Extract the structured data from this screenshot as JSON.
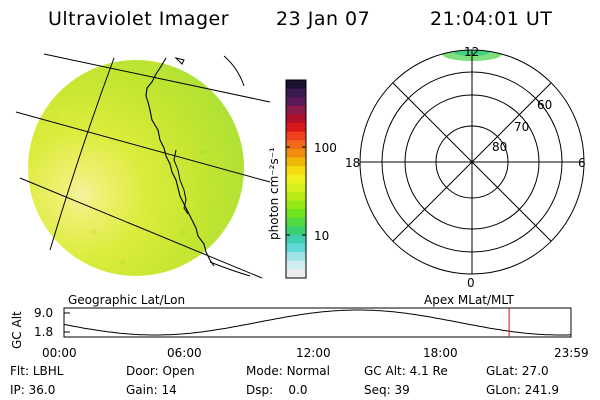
{
  "header": {
    "title": "Ultraviolet Imager",
    "date": "23 Jan 07",
    "time": "21:04:01 UT"
  },
  "colorbar": {
    "unit_label": "photon cm⁻²s⁻¹",
    "tick_labels": [
      "100",
      "10"
    ],
    "colors_top_to_bottom": [
      "#1c1030",
      "#3a1850",
      "#5a1a58",
      "#8a1a48",
      "#b0102a",
      "#d81818",
      "#f04020",
      "#f06818",
      "#f08c10",
      "#f0b808",
      "#f4dc10",
      "#f0f020",
      "#d8f020",
      "#b8ec18",
      "#94e818",
      "#70e420",
      "#50dc40",
      "#38d070",
      "#40d0b0",
      "#60d8d8",
      "#a0e4e8",
      "#d0eef0",
      "#ececec"
    ]
  },
  "geo_panel": {
    "label": "Geographic Lat/Lon"
  },
  "polar_panel": {
    "label": "Apex MLat/MLT",
    "mlt_labels": {
      "top": "12",
      "left": "18",
      "right": "6",
      "bottom": "0"
    },
    "lat_labels": [
      "60",
      "70",
      "80"
    ]
  },
  "timeline": {
    "ylabel": "GC Alt",
    "y_ticks": [
      "9.0",
      "1.8"
    ],
    "x_ticks": [
      "00:00",
      "06:00",
      "12:00",
      "18:00",
      "23:59"
    ],
    "current_time_fraction": 0.8779,
    "curve_color": "#000000",
    "marker_color": "#d01010"
  },
  "info": {
    "rows": [
      [
        {
          "label": "Flt:",
          "value": "LBHL"
        },
        {
          "label": "Door:",
          "value": "Open"
        },
        {
          "label": "Mode:",
          "value": "Normal"
        },
        {
          "label": "GC Alt:",
          "value": "4.1 Re"
        },
        {
          "label": "GLat:",
          "value": "27.0"
        }
      ],
      [
        {
          "label": "IP:",
          "value": "36.0"
        },
        {
          "label": "Gain:",
          "value": "14"
        },
        {
          "label": "Dsp:",
          "value": "0.0"
        },
        {
          "label": "Seq:",
          "value": "39"
        },
        {
          "label": "GLon:",
          "value": "241.9"
        }
      ]
    ]
  }
}
